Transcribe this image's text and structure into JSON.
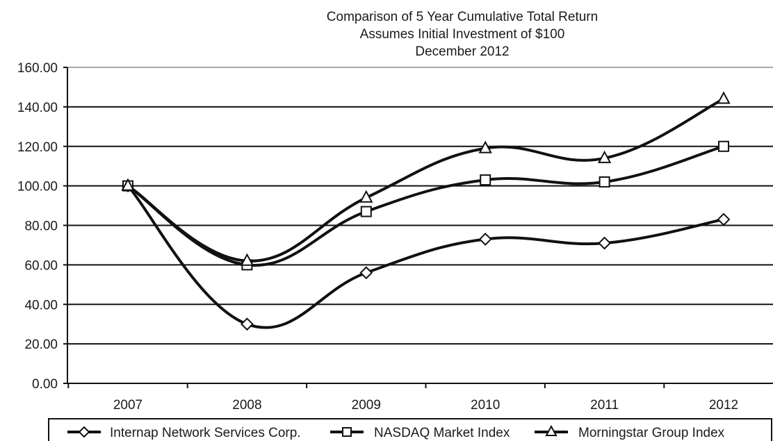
{
  "chart_data": {
    "type": "line",
    "title": [
      "Comparison of 5 Year Cumulative Total Return",
      "Assumes Initial Investment of $100",
      "December 2012"
    ],
    "xlabel": "",
    "ylabel": "",
    "categories": [
      "2007",
      "2008",
      "2009",
      "2010",
      "2011",
      "2012"
    ],
    "ylim": [
      0,
      160
    ],
    "yticks": [
      "0.00",
      "20.00",
      "40.00",
      "60.00",
      "80.00",
      "100.00",
      "120.00",
      "140.00",
      "160.00"
    ],
    "grid": true,
    "legend_position": "bottom",
    "series": [
      {
        "name": "Internap Network Services Corp.",
        "marker": "diamond",
        "values": [
          100,
          30,
          56,
          73,
          71,
          83
        ]
      },
      {
        "name": "NASDAQ Market Index",
        "marker": "square",
        "values": [
          100,
          60,
          87,
          103,
          102,
          120
        ]
      },
      {
        "name": "Morningstar Group Index",
        "marker": "triangle",
        "values": [
          100,
          62,
          94,
          119,
          114,
          144
        ]
      }
    ]
  }
}
